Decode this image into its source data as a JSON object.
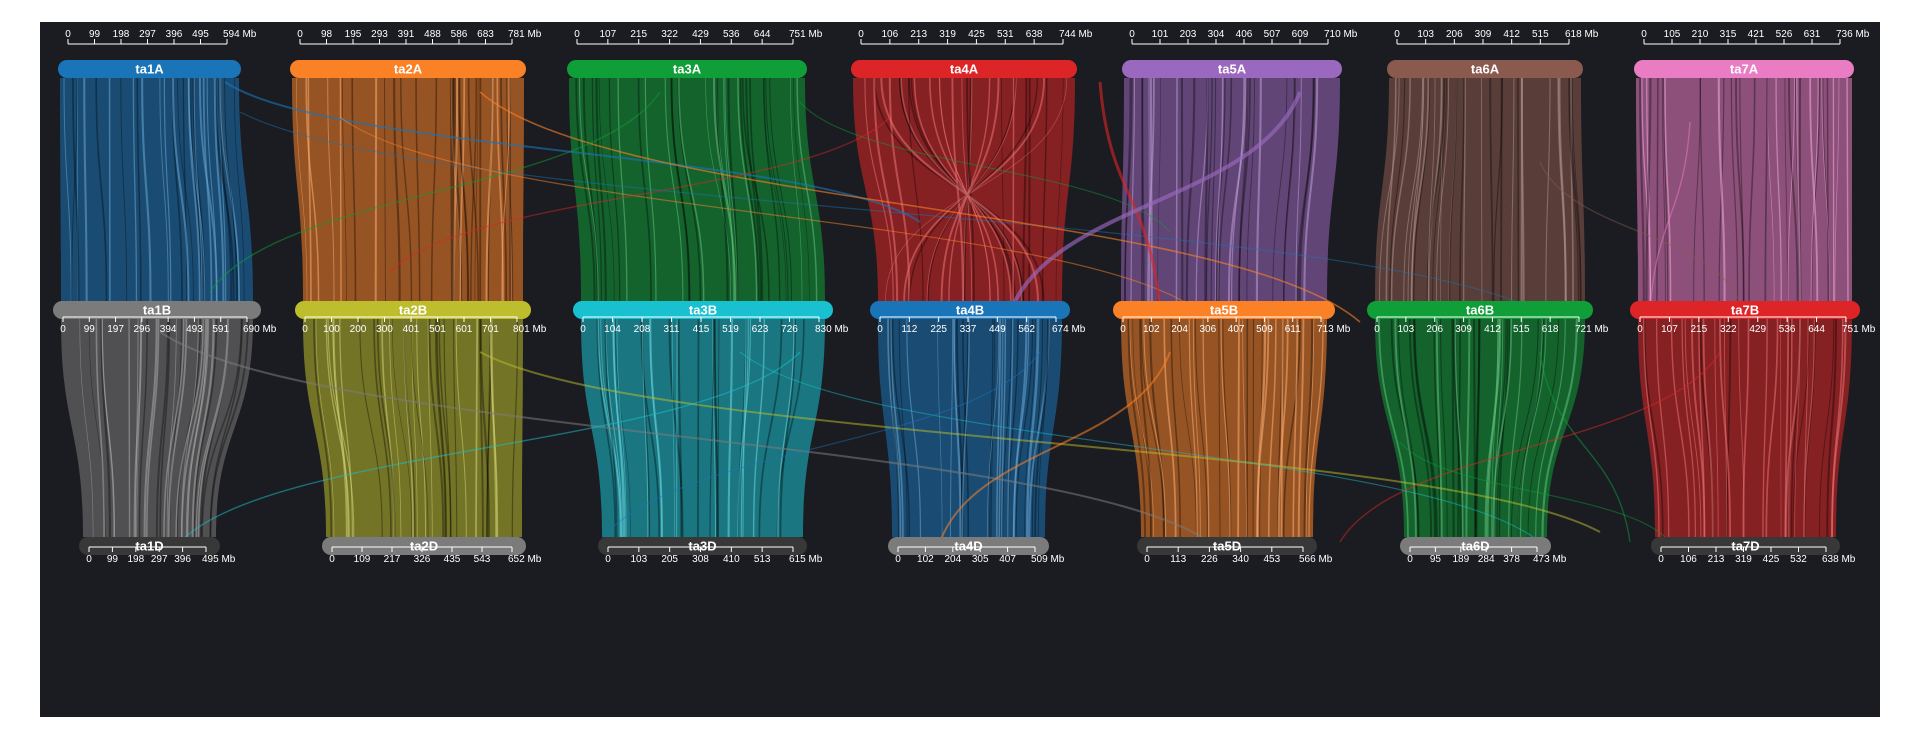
{
  "diagram": {
    "background": "#1b1c21",
    "axis_color": "#ffffff",
    "unit": "Mb",
    "columns": [
      {
        "A": {
          "name": "ta1A",
          "color": "#1a75b8",
          "ticks": [
            "0",
            "99",
            "198",
            "297",
            "396",
            "495",
            "594 Mb"
          ]
        },
        "B": {
          "name": "ta1B",
          "color": "#7b7b7b",
          "ticks": [
            "0",
            "99",
            "197",
            "296",
            "394",
            "493",
            "591",
            "690 Mb"
          ]
        },
        "D": {
          "name": "ta1D",
          "color": "#383838",
          "ticks": [
            "0",
            "99",
            "198",
            "297",
            "396",
            "495 Mb"
          ]
        }
      },
      {
        "A": {
          "name": "ta2A",
          "color": "#fb8127",
          "ticks": [
            "0",
            "98",
            "195",
            "293",
            "391",
            "488",
            "586",
            "683",
            "781 Mb"
          ]
        },
        "B": {
          "name": "ta2B",
          "color": "#bdbd2d",
          "ticks": [
            "0",
            "100",
            "200",
            "300",
            "401",
            "501",
            "601",
            "701",
            "801 Mb"
          ]
        },
        "D": {
          "name": "ta2D",
          "color": "#7b7b7b",
          "ticks": [
            "0",
            "109",
            "217",
            "326",
            "435",
            "543",
            "652 Mb"
          ]
        }
      },
      {
        "A": {
          "name": "ta3A",
          "color": "#0f9e38",
          "ticks": [
            "0",
            "107",
            "215",
            "322",
            "429",
            "536",
            "644",
            "751 Mb"
          ]
        },
        "B": {
          "name": "ta3B",
          "color": "#19c1d0",
          "ticks": [
            "0",
            "104",
            "208",
            "311",
            "415",
            "519",
            "623",
            "726",
            "830 Mb"
          ]
        },
        "D": {
          "name": "ta3D",
          "color": "#383838",
          "ticks": [
            "0",
            "103",
            "205",
            "308",
            "410",
            "513",
            "615 Mb"
          ]
        }
      },
      {
        "A": {
          "name": "ta4A",
          "color": "#dd2527",
          "ticks": [
            "0",
            "106",
            "213",
            "319",
            "425",
            "531",
            "638",
            "744 Mb"
          ]
        },
        "B": {
          "name": "ta4B",
          "color": "#1a75b8",
          "ticks": [
            "0",
            "112",
            "225",
            "337",
            "449",
            "562",
            "674 Mb"
          ]
        },
        "D": {
          "name": "ta4D",
          "color": "#7b7b7b",
          "ticks": [
            "0",
            "102",
            "204",
            "305",
            "407",
            "509 Mb"
          ]
        }
      },
      {
        "A": {
          "name": "ta5A",
          "color": "#9a68be",
          "ticks": [
            "0",
            "101",
            "203",
            "304",
            "406",
            "507",
            "609",
            "710 Mb"
          ]
        },
        "B": {
          "name": "ta5B",
          "color": "#fb8127",
          "ticks": [
            "0",
            "102",
            "204",
            "306",
            "407",
            "509",
            "611",
            "713 Mb"
          ]
        },
        "D": {
          "name": "ta5D",
          "color": "#383838",
          "ticks": [
            "0",
            "113",
            "226",
            "340",
            "453",
            "566 Mb"
          ]
        }
      },
      {
        "A": {
          "name": "ta6A",
          "color": "#8a5a4e",
          "ticks": [
            "0",
            "103",
            "206",
            "309",
            "412",
            "515",
            "618 Mb"
          ]
        },
        "B": {
          "name": "ta6B",
          "color": "#0f9e38",
          "ticks": [
            "0",
            "103",
            "206",
            "309",
            "412",
            "515",
            "618",
            "721 Mb"
          ]
        },
        "D": {
          "name": "ta6D",
          "color": "#7b7b7b",
          "ticks": [
            "0",
            "95",
            "189",
            "284",
            "378",
            "473 Mb"
          ]
        }
      },
      {
        "A": {
          "name": "ta7A",
          "color": "#ea7cc4",
          "ticks": [
            "0",
            "105",
            "210",
            "315",
            "421",
            "526",
            "631",
            "736 Mb"
          ]
        },
        "B": {
          "name": "ta7B",
          "color": "#dd2527",
          "ticks": [
            "0",
            "107",
            "215",
            "322",
            "429",
            "536",
            "644",
            "751 Mb"
          ]
        },
        "D": {
          "name": "ta7D",
          "color": "#383838",
          "ticks": [
            "0",
            "106",
            "213",
            "319",
            "425",
            "532",
            "638 Mb"
          ]
        }
      }
    ]
  }
}
